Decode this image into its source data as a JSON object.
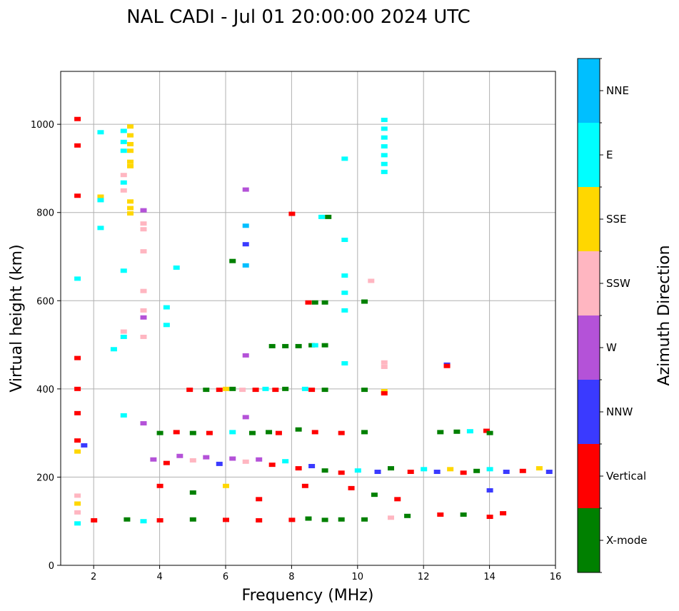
{
  "chart_data": {
    "type": "scatter",
    "title": "NAL CADI - Jul 01 20:00:00 2024 UTC",
    "xlabel": "Frequency (MHz)",
    "ylabel": "Virtual height (km)",
    "xlim": [
      1.0,
      16.0
    ],
    "ylim": [
      0,
      1120
    ],
    "xticks": [
      2,
      4,
      6,
      8,
      10,
      12,
      14,
      16
    ],
    "yticks": [
      0,
      200,
      400,
      600,
      800,
      1000
    ],
    "grid": true,
    "colorbar": {
      "label": "Azimuth Direction",
      "position": "right",
      "categories": [
        {
          "name": "X-mode",
          "color": "#008000"
        },
        {
          "name": "Vertical",
          "color": "#ff0000"
        },
        {
          "name": "NNW",
          "color": "#3a3aff"
        },
        {
          "name": "W",
          "color": "#b452d8"
        },
        {
          "name": "SSW",
          "color": "#ffb6c1"
        },
        {
          "name": "SSE",
          "color": "#ffd700"
        },
        {
          "name": "E",
          "color": "#00ffff"
        },
        {
          "name": "NNE",
          "color": "#00bfff"
        }
      ]
    },
    "echoes": [
      {
        "f": 1.5,
        "h": 1012,
        "c": 1
      },
      {
        "f": 1.5,
        "h": 952,
        "c": 1
      },
      {
        "f": 1.5,
        "h": 838,
        "c": 1
      },
      {
        "f": 1.5,
        "h": 650,
        "c": 6
      },
      {
        "f": 1.5,
        "h": 470,
        "c": 1
      },
      {
        "f": 1.5,
        "h": 400,
        "c": 1
      },
      {
        "f": 1.5,
        "h": 345,
        "c": 1
      },
      {
        "f": 1.5,
        "h": 283,
        "c": 1
      },
      {
        "f": 1.5,
        "h": 258,
        "c": 5
      },
      {
        "f": 1.5,
        "h": 158,
        "c": 4
      },
      {
        "f": 1.5,
        "h": 140,
        "c": 5
      },
      {
        "f": 1.5,
        "h": 120,
        "c": 4
      },
      {
        "f": 1.5,
        "h": 95,
        "c": 6
      },
      {
        "f": 1.7,
        "h": 272,
        "c": 2
      },
      {
        "f": 2.2,
        "h": 982,
        "c": 6
      },
      {
        "f": 2.2,
        "h": 836,
        "c": 5
      },
      {
        "f": 2.2,
        "h": 828,
        "c": 6
      },
      {
        "f": 2.2,
        "h": 765,
        "c": 6
      },
      {
        "f": 2.6,
        "h": 490,
        "c": 6
      },
      {
        "f": 2.9,
        "h": 985,
        "c": 6
      },
      {
        "f": 2.9,
        "h": 960,
        "c": 6
      },
      {
        "f": 2.9,
        "h": 940,
        "c": 6
      },
      {
        "f": 2.9,
        "h": 885,
        "c": 4
      },
      {
        "f": 2.9,
        "h": 868,
        "c": 6
      },
      {
        "f": 2.9,
        "h": 850,
        "c": 4
      },
      {
        "f": 2.9,
        "h": 668,
        "c": 6
      },
      {
        "f": 2.9,
        "h": 530,
        "c": 4
      },
      {
        "f": 2.9,
        "h": 518,
        "c": 6
      },
      {
        "f": 2.9,
        "h": 340,
        "c": 6
      },
      {
        "f": 3.1,
        "h": 995,
        "c": 5
      },
      {
        "f": 3.1,
        "h": 975,
        "c": 5
      },
      {
        "f": 3.1,
        "h": 955,
        "c": 5
      },
      {
        "f": 3.1,
        "h": 940,
        "c": 5
      },
      {
        "f": 3.1,
        "h": 915,
        "c": 5
      },
      {
        "f": 3.1,
        "h": 905,
        "c": 5
      },
      {
        "f": 3.1,
        "h": 825,
        "c": 5
      },
      {
        "f": 3.1,
        "h": 810,
        "c": 5
      },
      {
        "f": 3.1,
        "h": 798,
        "c": 5
      },
      {
        "f": 3.5,
        "h": 805,
        "c": 3
      },
      {
        "f": 3.5,
        "h": 775,
        "c": 4
      },
      {
        "f": 3.5,
        "h": 762,
        "c": 4
      },
      {
        "f": 3.5,
        "h": 712,
        "c": 4
      },
      {
        "f": 3.5,
        "h": 622,
        "c": 4
      },
      {
        "f": 3.5,
        "h": 578,
        "c": 4
      },
      {
        "f": 3.5,
        "h": 562,
        "c": 3
      },
      {
        "f": 3.5,
        "h": 518,
        "c": 4
      },
      {
        "f": 3.5,
        "h": 322,
        "c": 3
      },
      {
        "f": 4.2,
        "h": 585,
        "c": 6
      },
      {
        "f": 4.2,
        "h": 545,
        "c": 6
      },
      {
        "f": 4.5,
        "h": 675,
        "c": 6
      },
      {
        "f": 6.6,
        "h": 852,
        "c": 3
      },
      {
        "f": 6.6,
        "h": 770,
        "c": 7
      },
      {
        "f": 6.6,
        "h": 728,
        "c": 2
      },
      {
        "f": 6.6,
        "h": 680,
        "c": 7
      },
      {
        "f": 6.2,
        "h": 690,
        "c": 0
      },
      {
        "f": 6.6,
        "h": 476,
        "c": 3
      },
      {
        "f": 6.6,
        "h": 336,
        "c": 3
      },
      {
        "f": 8.0,
        "h": 797,
        "c": 1
      },
      {
        "f": 8.9,
        "h": 790,
        "c": 6
      },
      {
        "f": 9.1,
        "h": 790,
        "c": 0
      },
      {
        "f": 9.6,
        "h": 922,
        "c": 6
      },
      {
        "f": 9.6,
        "h": 738,
        "c": 6
      },
      {
        "f": 9.6,
        "h": 657,
        "c": 6
      },
      {
        "f": 9.6,
        "h": 618,
        "c": 6
      },
      {
        "f": 9.6,
        "h": 578,
        "c": 6
      },
      {
        "f": 9.6,
        "h": 458,
        "c": 6
      },
      {
        "f": 10.4,
        "h": 645,
        "c": 4
      },
      {
        "f": 10.2,
        "h": 598,
        "c": 0
      },
      {
        "f": 10.2,
        "h": 398,
        "c": 0
      },
      {
        "f": 10.8,
        "h": 1010,
        "c": 6
      },
      {
        "f": 10.8,
        "h": 990,
        "c": 6
      },
      {
        "f": 10.8,
        "h": 970,
        "c": 6
      },
      {
        "f": 10.8,
        "h": 950,
        "c": 6
      },
      {
        "f": 10.8,
        "h": 930,
        "c": 6
      },
      {
        "f": 10.8,
        "h": 910,
        "c": 6
      },
      {
        "f": 10.8,
        "h": 892,
        "c": 6
      },
      {
        "f": 10.8,
        "h": 460,
        "c": 4
      },
      {
        "f": 10.8,
        "h": 450,
        "c": 4
      },
      {
        "f": 10.8,
        "h": 395,
        "c": 5
      },
      {
        "f": 10.8,
        "h": 390,
        "c": 1
      },
      {
        "f": 8.5,
        "h": 596,
        "c": 1
      },
      {
        "f": 8.7,
        "h": 596,
        "c": 0
      },
      {
        "f": 9.0,
        "h": 596,
        "c": 0
      },
      {
        "f": 7.4,
        "h": 497,
        "c": 0
      },
      {
        "f": 7.8,
        "h": 497,
        "c": 0
      },
      {
        "f": 8.2,
        "h": 497,
        "c": 0
      },
      {
        "f": 8.6,
        "h": 499,
        "c": 0
      },
      {
        "f": 8.7,
        "h": 499,
        "c": 6
      },
      {
        "f": 9.0,
        "h": 499,
        "c": 0
      },
      {
        "f": 12.7,
        "h": 455,
        "c": 2
      },
      {
        "f": 12.7,
        "h": 452,
        "c": 1
      },
      {
        "f": 4.9,
        "h": 398,
        "c": 1
      },
      {
        "f": 5.4,
        "h": 398,
        "c": 0
      },
      {
        "f": 5.8,
        "h": 398,
        "c": 1
      },
      {
        "f": 6.0,
        "h": 400,
        "c": 5
      },
      {
        "f": 6.2,
        "h": 400,
        "c": 0
      },
      {
        "f": 6.5,
        "h": 398,
        "c": 4
      },
      {
        "f": 6.9,
        "h": 398,
        "c": 1
      },
      {
        "f": 7.2,
        "h": 400,
        "c": 6
      },
      {
        "f": 7.5,
        "h": 398,
        "c": 1
      },
      {
        "f": 7.8,
        "h": 400,
        "c": 0
      },
      {
        "f": 8.4,
        "h": 400,
        "c": 6
      },
      {
        "f": 8.6,
        "h": 398,
        "c": 1
      },
      {
        "f": 9.0,
        "h": 398,
        "c": 0
      },
      {
        "f": 4.0,
        "h": 300,
        "c": 0
      },
      {
        "f": 4.5,
        "h": 302,
        "c": 1
      },
      {
        "f": 5.0,
        "h": 300,
        "c": 0
      },
      {
        "f": 5.5,
        "h": 300,
        "c": 1
      },
      {
        "f": 6.2,
        "h": 302,
        "c": 6
      },
      {
        "f": 6.8,
        "h": 300,
        "c": 0
      },
      {
        "f": 7.3,
        "h": 302,
        "c": 0
      },
      {
        "f": 7.6,
        "h": 300,
        "c": 1
      },
      {
        "f": 8.2,
        "h": 308,
        "c": 0
      },
      {
        "f": 8.7,
        "h": 302,
        "c": 1
      },
      {
        "f": 9.5,
        "h": 300,
        "c": 1
      },
      {
        "f": 10.2,
        "h": 302,
        "c": 0
      },
      {
        "f": 12.5,
        "h": 302,
        "c": 0
      },
      {
        "f": 13.0,
        "h": 303,
        "c": 0
      },
      {
        "f": 13.4,
        "h": 304,
        "c": 6
      },
      {
        "f": 13.9,
        "h": 305,
        "c": 1
      },
      {
        "f": 14.0,
        "h": 300,
        "c": 0
      },
      {
        "f": 3.8,
        "h": 240,
        "c": 3
      },
      {
        "f": 4.2,
        "h": 232,
        "c": 1
      },
      {
        "f": 4.6,
        "h": 248,
        "c": 3
      },
      {
        "f": 5.0,
        "h": 238,
        "c": 4
      },
      {
        "f": 5.4,
        "h": 245,
        "c": 3
      },
      {
        "f": 5.8,
        "h": 230,
        "c": 2
      },
      {
        "f": 6.2,
        "h": 242,
        "c": 3
      },
      {
        "f": 6.6,
        "h": 235,
        "c": 4
      },
      {
        "f": 7.0,
        "h": 240,
        "c": 3
      },
      {
        "f": 7.4,
        "h": 228,
        "c": 1
      },
      {
        "f": 7.8,
        "h": 236,
        "c": 6
      },
      {
        "f": 8.2,
        "h": 220,
        "c": 1
      },
      {
        "f": 8.6,
        "h": 225,
        "c": 2
      },
      {
        "f": 9.0,
        "h": 215,
        "c": 0
      },
      {
        "f": 9.5,
        "h": 210,
        "c": 1
      },
      {
        "f": 10.0,
        "h": 215,
        "c": 6
      },
      {
        "f": 10.6,
        "h": 212,
        "c": 2
      },
      {
        "f": 11.0,
        "h": 220,
        "c": 0
      },
      {
        "f": 11.6,
        "h": 212,
        "c": 1
      },
      {
        "f": 12.0,
        "h": 218,
        "c": 6
      },
      {
        "f": 12.4,
        "h": 212,
        "c": 2
      },
      {
        "f": 12.8,
        "h": 218,
        "c": 5
      },
      {
        "f": 13.2,
        "h": 210,
        "c": 1
      },
      {
        "f": 13.6,
        "h": 214,
        "c": 0
      },
      {
        "f": 14.0,
        "h": 218,
        "c": 6
      },
      {
        "f": 14.5,
        "h": 212,
        "c": 2
      },
      {
        "f": 15.0,
        "h": 214,
        "c": 1
      },
      {
        "f": 15.5,
        "h": 220,
        "c": 5
      },
      {
        "f": 15.8,
        "h": 212,
        "c": 2
      },
      {
        "f": 4.0,
        "h": 180,
        "c": 1
      },
      {
        "f": 5.0,
        "h": 165,
        "c": 0
      },
      {
        "f": 6.0,
        "h": 180,
        "c": 5
      },
      {
        "f": 7.0,
        "h": 150,
        "c": 1
      },
      {
        "f": 8.4,
        "h": 180,
        "c": 1
      },
      {
        "f": 9.8,
        "h": 175,
        "c": 1
      },
      {
        "f": 10.5,
        "h": 160,
        "c": 0
      },
      {
        "f": 11.2,
        "h": 150,
        "c": 1
      },
      {
        "f": 14.0,
        "h": 170,
        "c": 2
      },
      {
        "f": 2.0,
        "h": 102,
        "c": 1
      },
      {
        "f": 3.0,
        "h": 104,
        "c": 0
      },
      {
        "f": 3.5,
        "h": 100,
        "c": 6
      },
      {
        "f": 4.0,
        "h": 102,
        "c": 1
      },
      {
        "f": 5.0,
        "h": 104,
        "c": 0
      },
      {
        "f": 6.0,
        "h": 103,
        "c": 1
      },
      {
        "f": 7.0,
        "h": 102,
        "c": 1
      },
      {
        "f": 8.0,
        "h": 103,
        "c": 1
      },
      {
        "f": 8.5,
        "h": 106,
        "c": 0
      },
      {
        "f": 9.0,
        "h": 103,
        "c": 0
      },
      {
        "f": 9.5,
        "h": 104,
        "c": 0
      },
      {
        "f": 10.2,
        "h": 104,
        "c": 0
      },
      {
        "f": 11.0,
        "h": 108,
        "c": 4
      },
      {
        "f": 11.5,
        "h": 112,
        "c": 0
      },
      {
        "f": 12.5,
        "h": 115,
        "c": 1
      },
      {
        "f": 13.2,
        "h": 115,
        "c": 0
      },
      {
        "f": 14.0,
        "h": 110,
        "c": 1
      },
      {
        "f": 14.4,
        "h": 118,
        "c": 1
      }
    ]
  }
}
